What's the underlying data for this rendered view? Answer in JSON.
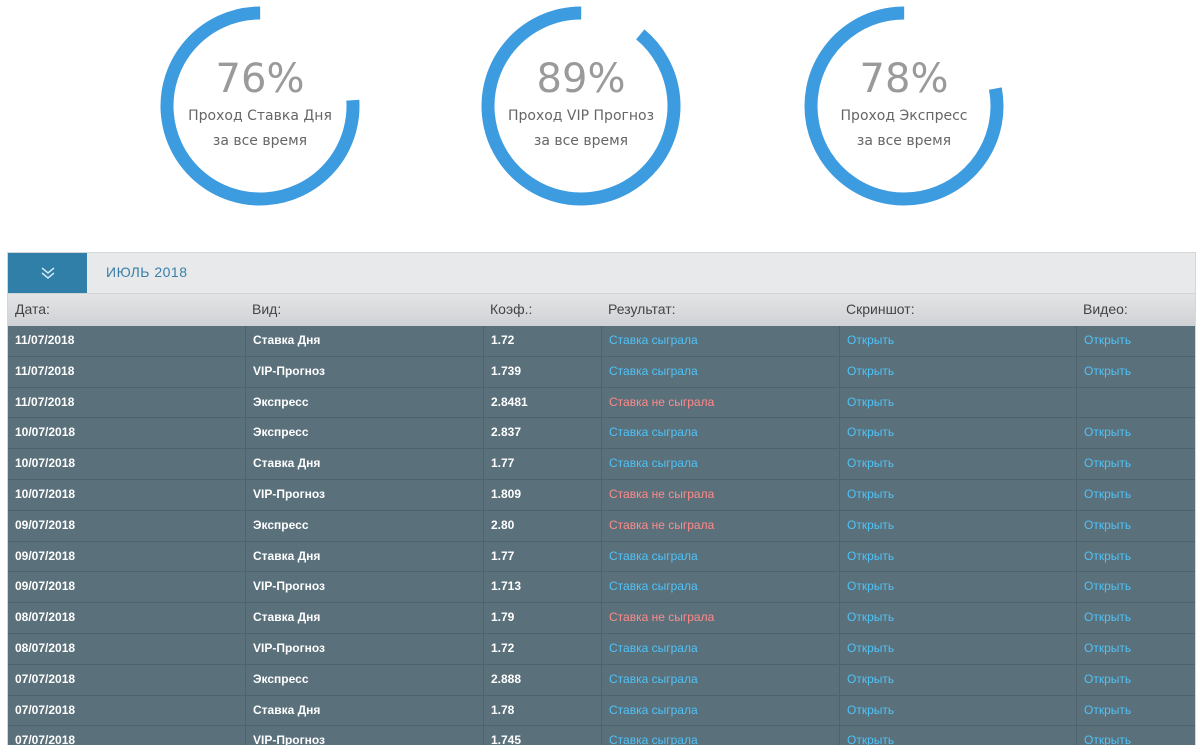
{
  "stats": [
    {
      "percent": "76%",
      "value": 0.76,
      "line1": "Проход Ставка Дня",
      "line2": "за все время"
    },
    {
      "percent": "89%",
      "value": 0.89,
      "line1": "Проход VIP Прогноз",
      "line2": "за все время"
    },
    {
      "percent": "78%",
      "value": 0.78,
      "line1": "Проход Экспресс",
      "line2": "за все время"
    }
  ],
  "colors": {
    "gauge": "#3d9be0",
    "win": "#4fc3f7",
    "lose": "#ff8a8a",
    "row": "#5a707b"
  },
  "table": {
    "month": "ИЮЛЬ 2018",
    "toggle_icon": "double-chevron-down-icon",
    "headers": {
      "date": "Дата:",
      "type": "Вид:",
      "coef": "Коэф.:",
      "result": "Результат:",
      "screenshot": "Скриншот:",
      "video": "Видео:"
    },
    "rows": [
      {
        "date": "11/07/2018",
        "type": "Ставка Дня",
        "coef": "1.72",
        "result": "Ставка сыграла",
        "win": true,
        "screenshot": "Открыть",
        "video": "Открыть"
      },
      {
        "date": "11/07/2018",
        "type": "VIP-Прогноз",
        "coef": "1.739",
        "result": "Ставка сыграла",
        "win": true,
        "screenshot": "Открыть",
        "video": "Открыть"
      },
      {
        "date": "11/07/2018",
        "type": "Экспресс",
        "coef": "2.8481",
        "result": "Ставка не сыграла",
        "win": false,
        "screenshot": "Открыть",
        "video": ""
      },
      {
        "date": "10/07/2018",
        "type": "Экспресс",
        "coef": "2.837",
        "result": "Ставка сыграла",
        "win": true,
        "screenshot": "Открыть",
        "video": "Открыть"
      },
      {
        "date": "10/07/2018",
        "type": "Ставка Дня",
        "coef": "1.77",
        "result": "Ставка сыграла",
        "win": true,
        "screenshot": "Открыть",
        "video": "Открыть"
      },
      {
        "date": "10/07/2018",
        "type": "VIP-Прогноз",
        "coef": "1.809",
        "result": "Ставка не сыграла",
        "win": false,
        "screenshot": "Открыть",
        "video": "Открыть"
      },
      {
        "date": "09/07/2018",
        "type": "Экспресс",
        "coef": "2.80",
        "result": "Ставка не сыграла",
        "win": false,
        "screenshot": "Открыть",
        "video": "Открыть"
      },
      {
        "date": "09/07/2018",
        "type": "Ставка Дня",
        "coef": "1.77",
        "result": "Ставка сыграла",
        "win": true,
        "screenshot": "Открыть",
        "video": "Открыть"
      },
      {
        "date": "09/07/2018",
        "type": "VIP-Прогноз",
        "coef": "1.713",
        "result": "Ставка сыграла",
        "win": true,
        "screenshot": "Открыть",
        "video": "Открыть"
      },
      {
        "date": "08/07/2018",
        "type": "Ставка Дня",
        "coef": "1.79",
        "result": "Ставка не сыграла",
        "win": false,
        "screenshot": "Открыть",
        "video": "Открыть"
      },
      {
        "date": "08/07/2018",
        "type": "VIP-Прогноз",
        "coef": "1.72",
        "result": "Ставка сыграла",
        "win": true,
        "screenshot": "Открыть",
        "video": "Открыть"
      },
      {
        "date": "07/07/2018",
        "type": "Экспресс",
        "coef": "2.888",
        "result": "Ставка сыграла",
        "win": true,
        "screenshot": "Открыть",
        "video": "Открыть"
      },
      {
        "date": "07/07/2018",
        "type": "Ставка Дня",
        "coef": "1.78",
        "result": "Ставка сыграла",
        "win": true,
        "screenshot": "Открыть",
        "video": "Открыть"
      },
      {
        "date": "07/07/2018",
        "type": "VIP-Прогноз",
        "coef": "1.745",
        "result": "Ставка сыграла",
        "win": true,
        "screenshot": "Открыть",
        "video": "Открыть"
      }
    ]
  }
}
